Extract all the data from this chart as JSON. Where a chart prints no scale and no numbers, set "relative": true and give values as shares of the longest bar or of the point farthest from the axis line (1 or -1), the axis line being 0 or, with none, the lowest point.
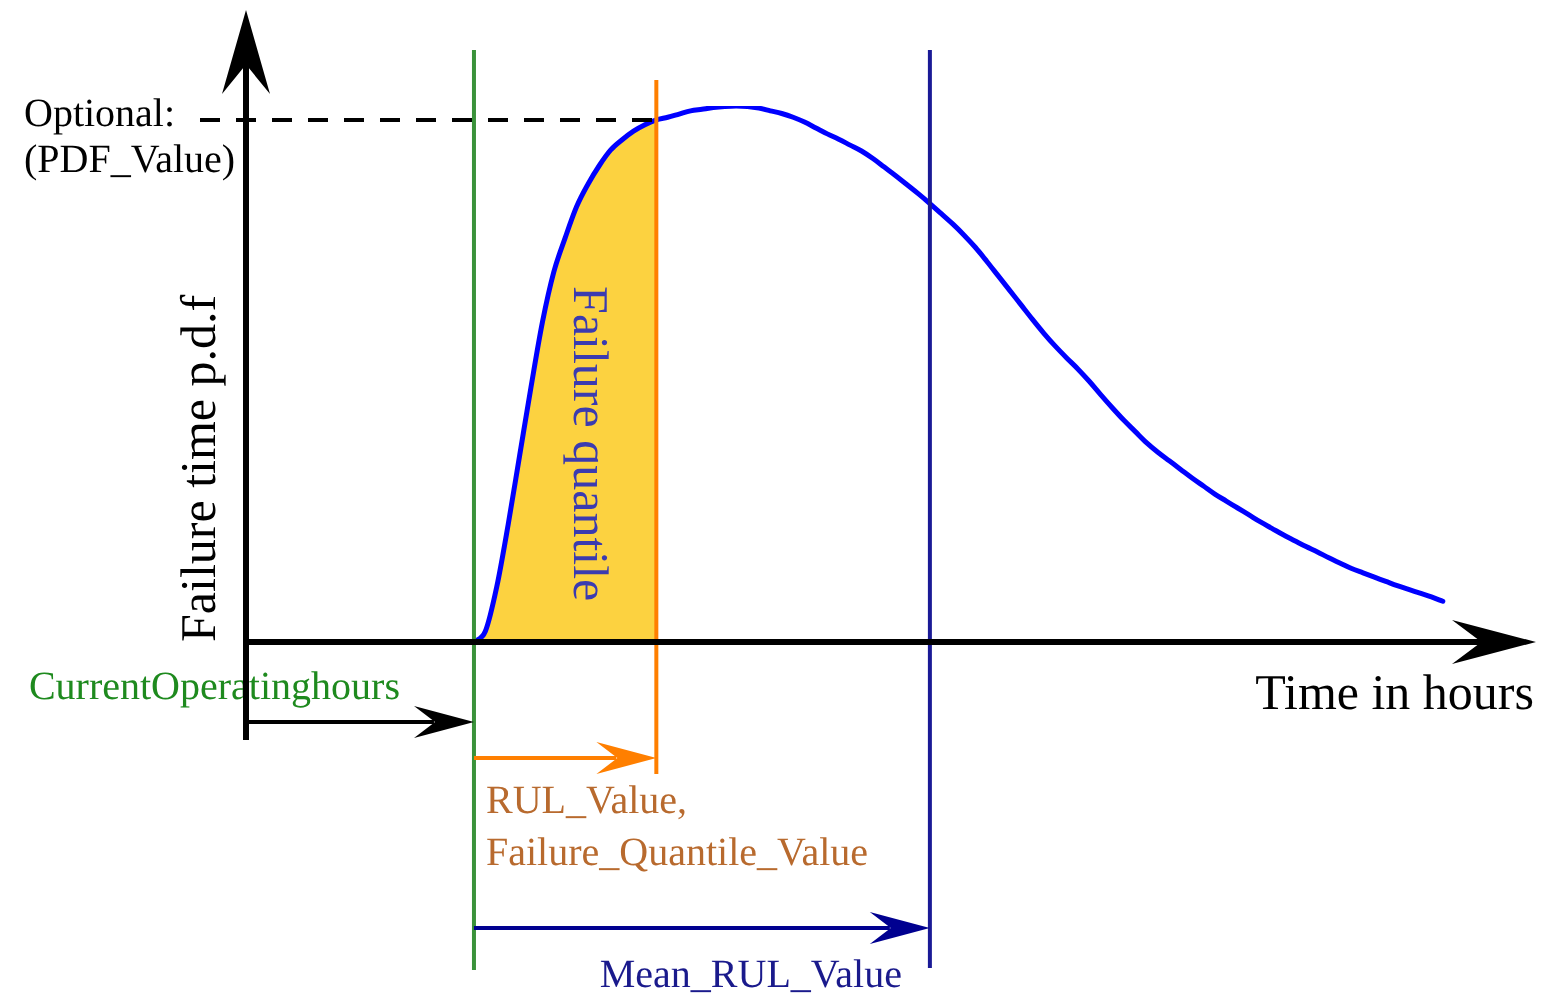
{
  "chart_data": {
    "type": "line",
    "xlabel": "Time in hours",
    "ylabel": "Failure time p.d.f",
    "relative": true,
    "categories": [
      null,
      null,
      null,
      null,
      null,
      null,
      null,
      null,
      null,
      null,
      null,
      null,
      null,
      null,
      null,
      null,
      null,
      null,
      null,
      null,
      null,
      null,
      null,
      null,
      null,
      null,
      null,
      null,
      null,
      null,
      null,
      null,
      null,
      null,
      null,
      null,
      null,
      null,
      null,
      null,
      null,
      null,
      null,
      null,
      null,
      null,
      null,
      null,
      null,
      null,
      null,
      null,
      null,
      null,
      null,
      null,
      null,
      null,
      null,
      null,
      null,
      null,
      null,
      null,
      null,
      null,
      null,
      null,
      null,
      null,
      null,
      null,
      null,
      null,
      null,
      null,
      null,
      null,
      null,
      null,
      null,
      null,
      null,
      null,
      null,
      null,
      null,
      null,
      null,
      null,
      null,
      null,
      null,
      null,
      null,
      null,
      null,
      null,
      null,
      null,
      null,
      null,
      null,
      null,
      null,
      null,
      null,
      null,
      null,
      null,
      null,
      null,
      null,
      null
    ],
    "series": [
      {
        "color": "#0000ff",
        "values": [
          null,
          null,
          null,
          null,
          null,
          null,
          null,
          null,
          null,
          null,
          null,
          null,
          null,
          null,
          null,
          null,
          null,
          null,
          null,
          null,
          0,
          0.02,
          0.103,
          0.219,
          0.347,
          0.475,
          0.596,
          0.69,
          0.754,
          0.812,
          0.854,
          0.889,
          0.918,
          0.937,
          0.953,
          0.965,
          0.974,
          0.979,
          0.985,
          0.991,
          0.994,
          0.997,
          0.999,
          1.0,
          0.999,
          0.996,
          0.991,
          0.986,
          0.979,
          0.97,
          0.959,
          0.948,
          0.938,
          0.927,
          0.916,
          0.902,
          0.886,
          0.87,
          0.853,
          0.836,
          0.818,
          0.799,
          0.78,
          0.759,
          0.736,
          0.71,
          0.683,
          0.656,
          0.629,
          0.602,
          0.576,
          0.552,
          0.53,
          0.509,
          0.486,
          0.461,
          0.437,
          0.414,
          0.393,
          0.372,
          0.354,
          0.338,
          0.322,
          0.306,
          0.291,
          0.276,
          0.263,
          0.25,
          0.237,
          0.224,
          0.212,
          0.2,
          0.189,
          0.178,
          0.168,
          0.157,
          0.147,
          0.137,
          0.129,
          0.121,
          0.113,
          0.105,
          0.098,
          0.091,
          0.084,
          0.076,
          null,
          null,
          null,
          null,
          null,
          null,
          null,
          null
        ]
      },
      {
        "type": "area",
        "name": "Failure quantile",
        "color": "#fcd240",
        "values": [
          null,
          null,
          null,
          null,
          null,
          null,
          null,
          null,
          null,
          null,
          null,
          null,
          null,
          null,
          null,
          null,
          null,
          null,
          null,
          null,
          0,
          0.02,
          0.103,
          0.219,
          0.347,
          0.475,
          0.596,
          0.69,
          0.754,
          0.812,
          0.854,
          0.889,
          0.918,
          0.937,
          0.953,
          0.965,
          0.974,
          null,
          null,
          null,
          null,
          null,
          null,
          null,
          null,
          null,
          null,
          null,
          null,
          null,
          null,
          null,
          null,
          null,
          null,
          null,
          null,
          null,
          null,
          null,
          null,
          null,
          null,
          null,
          null,
          null,
          null,
          null,
          null,
          null,
          null,
          null,
          null,
          null,
          null,
          null,
          null,
          null,
          null,
          null,
          null,
          null,
          null,
          null,
          null,
          null,
          null,
          null,
          null,
          null,
          null,
          null,
          null,
          null,
          null,
          null,
          null,
          null,
          null,
          null,
          null,
          null,
          null,
          null,
          null,
          null,
          null,
          null,
          null,
          null,
          null,
          null,
          null,
          null
        ]
      }
    ],
    "ref_lines": [
      {
        "axis": "y",
        "value": 0.974,
        "label": "Optional:\n(PDF_Value)",
        "color": "#000000",
        "line_style": "dashed"
      }
    ],
    "annotations": [
      "CurrentOperatinghours",
      "RUL_Value,\nFailure_Quantile_Value",
      "Mean_RUL_Value"
    ],
    "legend": false,
    "grid": false,
    "marker": "none",
    "line_style": "solid"
  }
}
